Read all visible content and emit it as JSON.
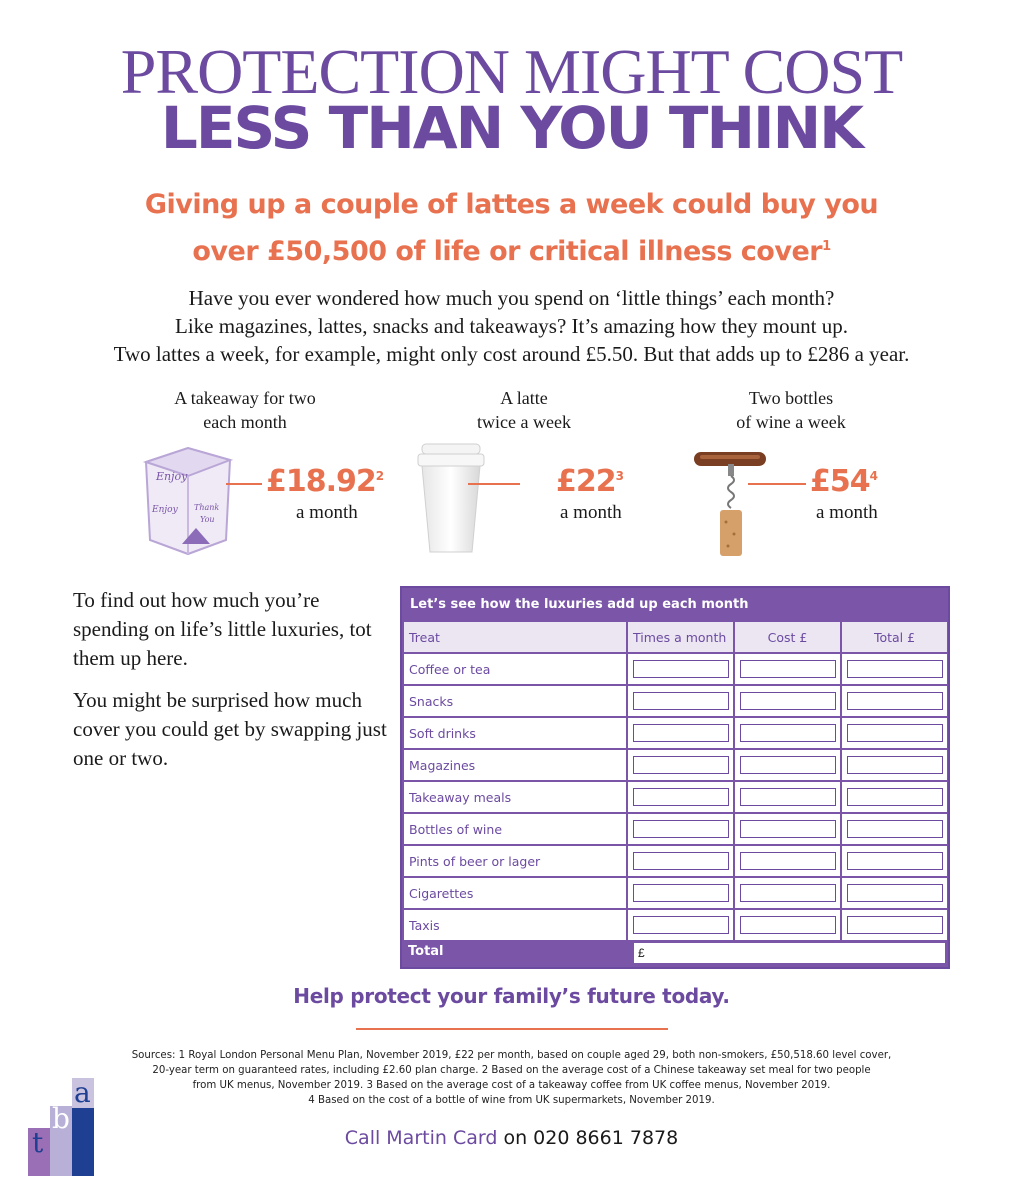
{
  "header": {
    "title_line1": "PROTECTION MIGHT COST",
    "title_line2": "LESS THAN YOU THINK",
    "subhead_line1": "Giving up a couple of lattes a week could buy you",
    "subhead_line2": "over £50,500 of life or critical illness cover",
    "subhead_footnote": "1"
  },
  "intro": {
    "line1": "Have you ever wondered how much you spend on ‘little things’ each month?",
    "line2": "Like magazines, lattes, snacks and takeaways? It’s amazing how they mount up.",
    "line3": "Two lattes a week, for example, might only cost around £5.50. But that adds up to £286 a year."
  },
  "items": [
    {
      "label": "A takeaway for two\neach month",
      "price": "£18.92",
      "footnote": "2",
      "per": "a month",
      "icon": "takeaway-box-icon"
    },
    {
      "label": "A latte\ntwice a week",
      "price": "£22",
      "footnote": "3",
      "per": "a month",
      "icon": "coffee-cup-icon"
    },
    {
      "label": "Two bottles\nof wine a week",
      "price": "£54",
      "footnote": "4",
      "per": "a month",
      "icon": "corkscrew-icon"
    }
  ],
  "side": {
    "para1": "To find out how much you’re spending on life’s little luxuries, tot them up here.",
    "para2": "You might be surprised how much cover you could get by swapping just one or two."
  },
  "tracker": {
    "title": "Let’s see how the luxuries add up each month",
    "headers": [
      "Treat",
      "Times a month",
      "Cost £",
      "Total £"
    ],
    "rows": [
      "Coffee or tea",
      "Snacks",
      "Soft drinks",
      "Magazines",
      "Takeaway meals",
      "Bottles of wine",
      "Pints of beer or lager",
      "Cigarettes",
      "Taxis"
    ],
    "total_label": "Total",
    "total_prefix": "£"
  },
  "cta": "Help protect your family’s future today.",
  "sources": {
    "line1": "Sources: 1 Royal London Personal Menu Plan, November 2019, £22 per month, based on couple aged 29, both non-smokers, £50,518.60 level cover,",
    "line2": "20-year term on guaranteed rates, including £2.60 plan charge. 2 Based on the average cost of a Chinese takeaway set meal for two people",
    "line3": "from UK menus, November 2019. 3 Based on the average cost of a takeaway coffee from UK coffee menus, November 2019.",
    "line4": "4 Based on the cost of a bottle of wine from UK supermarkets, November 2019."
  },
  "contact": {
    "name": "Call Martin Card",
    "rest": " on 020 8661 7878"
  },
  "logo": {
    "letters": [
      "t",
      "b",
      "a"
    ]
  },
  "colors": {
    "purple": "#6b4aa0",
    "orange": "#e8714f"
  }
}
